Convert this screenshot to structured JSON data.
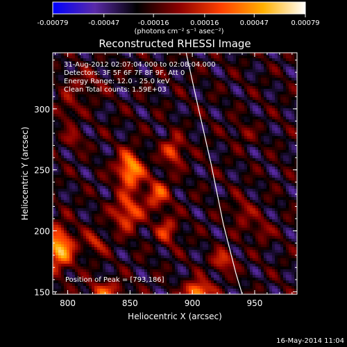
{
  "colorbar": {
    "tick_labels": [
      "-0.00079",
      "-0.00047",
      "-0.00016",
      "0.00016",
      "0.00047",
      "0.00079"
    ],
    "tick_values": [
      -0.00079,
      -0.00047,
      -0.00016,
      0.00016,
      0.00047,
      0.00079
    ],
    "range": [
      -0.00079,
      0.00079
    ],
    "unit_label": "(photons cm⁻² s⁻¹ asec⁻²)",
    "colors": [
      "#0000ff",
      "#5a2aa8",
      "#000000",
      "#8b0000",
      "#ff4000",
      "#ffb000",
      "#ffffff"
    ]
  },
  "chart_data": {
    "type": "heatmap",
    "title": "Reconstructed RHESSI Image",
    "xlabel": "Heliocentric X (arcsec)",
    "ylabel": "Heliocentric Y (arcsec)",
    "xlim": [
      788,
      984
    ],
    "ylim": [
      148,
      346
    ],
    "xticks": [
      800,
      850,
      900,
      950
    ],
    "yticks": [
      150,
      200,
      250,
      300
    ],
    "annotations": [
      "31-Aug-2012 02:07:04.000 to 02:08:04.000",
      "Detectors: 3F 5F 6F 7F 8F 9F, Att 0",
      "Energy Range: 12.0 - 25.0 keV",
      "Clean   Total counts: 1.59E+03"
    ],
    "peak_label": "Position of Peak = [793,186]",
    "peak": [
      793,
      186
    ],
    "limb_line": [
      [
        895,
        346
      ],
      [
        905,
        300
      ],
      [
        915,
        255
      ],
      [
        925,
        205
      ],
      [
        935,
        165
      ],
      [
        940,
        148
      ]
    ],
    "sources": [
      {
        "x": 850,
        "y": 250,
        "amp": 0.00079,
        "sx": 7,
        "sy": 10
      },
      {
        "x": 848,
        "y": 215,
        "amp": 0.00055,
        "sx": 8,
        "sy": 10
      },
      {
        "x": 872,
        "y": 230,
        "amp": 0.00047,
        "sx": 7,
        "sy": 9
      },
      {
        "x": 885,
        "y": 265,
        "amp": 0.0005,
        "sx": 6,
        "sy": 8
      },
      {
        "x": 880,
        "y": 200,
        "amp": 0.0004,
        "sx": 6,
        "sy": 8
      },
      {
        "x": 793,
        "y": 186,
        "amp": 0.00079,
        "sx": 8,
        "sy": 12
      },
      {
        "x": 822,
        "y": 190,
        "amp": 0.00035,
        "sx": 6,
        "sy": 6
      },
      {
        "x": 830,
        "y": 150,
        "amp": 0.00045,
        "sx": 10,
        "sy": 6
      },
      {
        "x": 905,
        "y": 150,
        "amp": 0.00079,
        "sx": 7,
        "sy": 6
      },
      {
        "x": 925,
        "y": 175,
        "amp": 0.00045,
        "sx": 6,
        "sy": 6
      },
      {
        "x": 955,
        "y": 200,
        "amp": 0.0003,
        "sx": 5,
        "sy": 6
      },
      {
        "x": 940,
        "y": 215,
        "amp": 0.0003,
        "sx": 6,
        "sy": 8
      },
      {
        "x": 940,
        "y": 280,
        "amp": 0.0002,
        "sx": 6,
        "sy": 6
      },
      {
        "x": 815,
        "y": 320,
        "amp": 0.0002,
        "sx": 10,
        "sy": 8
      },
      {
        "x": 805,
        "y": 275,
        "amp": 0.0003,
        "sx": 5,
        "sy": 5
      },
      {
        "x": 800,
        "y": 300,
        "amp": 0.00025,
        "sx": 6,
        "sy": 8
      }
    ]
  },
  "timestamp": "16-May-2014 11:04"
}
